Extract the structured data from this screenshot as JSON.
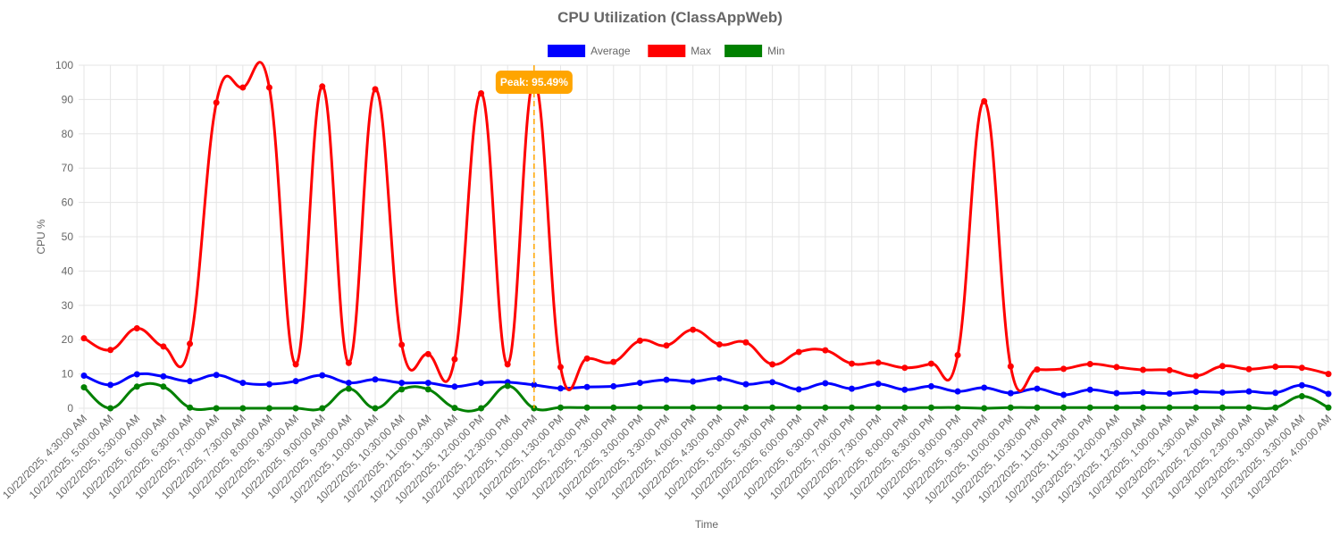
{
  "chart_data": {
    "type": "line",
    "title": "CPU Utilization (ClassAppWeb)",
    "xlabel": "Time",
    "ylabel": "CPU %",
    "ylim": [
      0,
      100
    ],
    "yticks": [
      0,
      10,
      20,
      30,
      40,
      50,
      60,
      70,
      80,
      90,
      100
    ],
    "grid": true,
    "legend_position": "top",
    "x": [
      "10/22/2025, 4:30:00 AM",
      "10/22/2025, 5:00:00 AM",
      "10/22/2025, 5:30:00 AM",
      "10/22/2025, 6:00:00 AM",
      "10/22/2025, 6:30:00 AM",
      "10/22/2025, 7:00:00 AM",
      "10/22/2025, 7:30:00 AM",
      "10/22/2025, 8:00:00 AM",
      "10/22/2025, 8:30:00 AM",
      "10/22/2025, 9:00:00 AM",
      "10/22/2025, 9:30:00 AM",
      "10/22/2025, 10:00:00 AM",
      "10/22/2025, 10:30:00 AM",
      "10/22/2025, 11:00:00 AM",
      "10/22/2025, 11:30:00 AM",
      "10/22/2025, 12:00:00 PM",
      "10/22/2025, 12:30:00 PM",
      "10/22/2025, 1:00:00 PM",
      "10/22/2025, 1:30:00 PM",
      "10/22/2025, 2:00:00 PM",
      "10/22/2025, 2:30:00 PM",
      "10/22/2025, 3:00:00 PM",
      "10/22/2025, 3:30:00 PM",
      "10/22/2025, 4:00:00 PM",
      "10/22/2025, 4:30:00 PM",
      "10/22/2025, 5:00:00 PM",
      "10/22/2025, 5:30:00 PM",
      "10/22/2025, 6:00:00 PM",
      "10/22/2025, 6:30:00 PM",
      "10/22/2025, 7:00:00 PM",
      "10/22/2025, 7:30:00 PM",
      "10/22/2025, 8:00:00 PM",
      "10/22/2025, 8:30:00 PM",
      "10/22/2025, 9:00:00 PM",
      "10/22/2025, 9:30:00 PM",
      "10/22/2025, 10:00:00 PM",
      "10/22/2025, 10:30:00 PM",
      "10/22/2025, 11:00:00 PM",
      "10/22/2025, 11:30:00 PM",
      "10/23/2025, 12:00:00 AM",
      "10/23/2025, 12:30:00 AM",
      "10/23/2025, 1:00:00 AM",
      "10/23/2025, 1:30:00 AM",
      "10/23/2025, 2:00:00 AM",
      "10/23/2025, 2:30:00 AM",
      "10/23/2025, 3:00:00 AM",
      "10/23/2025, 3:30:00 AM",
      "10/23/2025, 4:00:00 AM"
    ],
    "series": [
      {
        "name": "Average",
        "color": "#0000ff",
        "values": [
          9.5,
          6.8,
          9.9,
          9.3,
          7.9,
          9.7,
          7.4,
          7.0,
          7.9,
          9.6,
          7.4,
          8.4,
          7.4,
          7.4,
          6.3,
          7.4,
          7.6,
          6.8,
          5.8,
          6.2,
          6.4,
          7.4,
          8.3,
          7.8,
          8.7,
          7.0,
          7.6,
          5.5,
          7.3,
          5.7,
          7.1,
          5.4,
          6.4,
          4.9,
          6.0,
          4.4,
          5.7,
          3.9,
          5.4,
          4.4,
          4.6,
          4.3,
          4.8,
          4.6,
          4.9,
          4.5,
          6.7,
          4.2
        ]
      },
      {
        "name": "Max",
        "color": "#ff0000",
        "values": [
          20.4,
          17.0,
          23.3,
          18.0,
          18.8,
          89.1,
          93.5,
          93.5,
          12.8,
          93.8,
          13.2,
          93.0,
          18.5,
          15.8,
          14.3,
          91.8,
          12.8,
          95.49,
          12.0,
          14.5,
          13.5,
          19.7,
          18.3,
          22.9,
          18.6,
          19.2,
          12.8,
          16.4,
          16.9,
          13.0,
          13.3,
          11.8,
          13.0,
          15.5,
          89.5,
          12.2,
          11.3,
          11.5,
          12.9,
          12.0,
          11.2,
          11.1,
          9.4,
          12.3,
          11.4,
          12.1,
          11.8,
          10.0
        ]
      },
      {
        "name": "Min",
        "color": "#008000",
        "values": [
          6.1,
          0.0,
          6.3,
          6.3,
          0.2,
          0.0,
          0.0,
          0.0,
          0.0,
          0.0,
          5.7,
          0.0,
          5.5,
          5.5,
          0.1,
          0.0,
          6.5,
          0.0,
          0.2,
          0.2,
          0.2,
          0.2,
          0.2,
          0.2,
          0.2,
          0.2,
          0.2,
          0.2,
          0.2,
          0.2,
          0.2,
          0.2,
          0.2,
          0.2,
          0.0,
          0.2,
          0.2,
          0.2,
          0.2,
          0.2,
          0.2,
          0.2,
          0.2,
          0.2,
          0.2,
          0.2,
          3.5,
          0.2
        ]
      }
    ],
    "annotation": {
      "label": "Peak: 95.49%",
      "x": "10/22/2025, 1:00:00 PM",
      "value": 95.49,
      "color": "#ffa500"
    }
  }
}
